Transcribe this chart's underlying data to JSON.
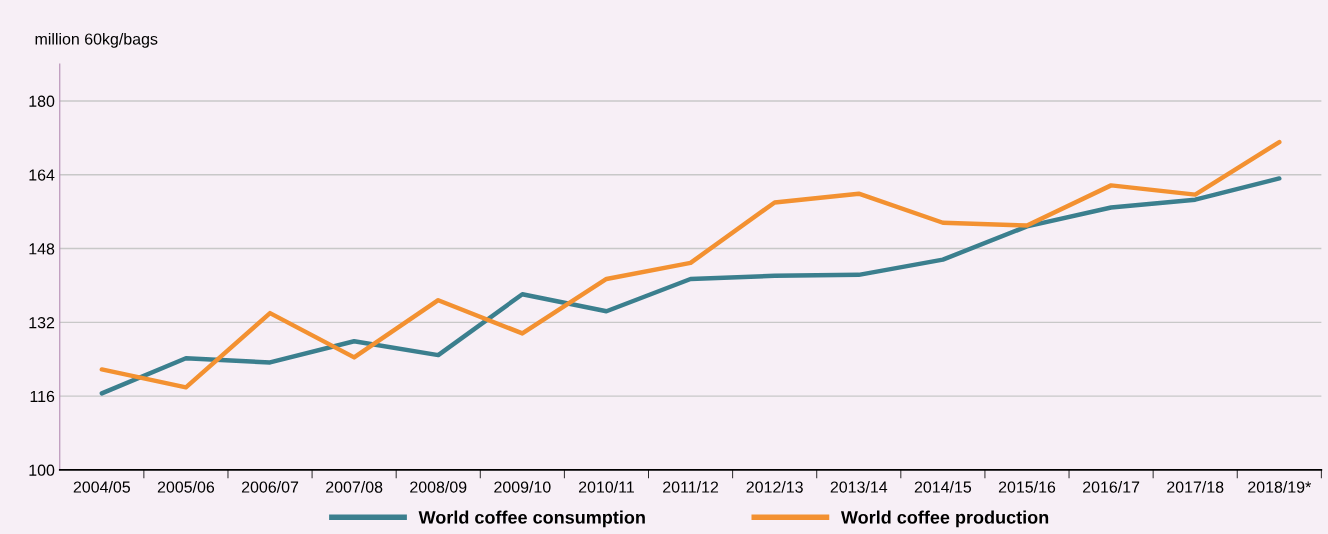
{
  "chart_data": {
    "type": "line",
    "ylabel": "million 60kg/bags",
    "categories": [
      "2004/05",
      "2005/06",
      "2006/07",
      "2007/08",
      "2008/09",
      "2009/10",
      "2010/11",
      "2011/12",
      "2012/13",
      "2013/14",
      "2014/15",
      "2015/16",
      "2016/17",
      "2017/18",
      "2018/19*"
    ],
    "series": [
      {
        "name": "World coffee consumption",
        "color": "#3b7f8e",
        "values": [
          116.6,
          124.2,
          123.3,
          127.9,
          124.9,
          138.1,
          134.4,
          141.4,
          142.1,
          142.3,
          145.6,
          152.8,
          156.9,
          158.6,
          163.2
        ]
      },
      {
        "name": "World coffee production",
        "color": "#f39131",
        "values": [
          121.8,
          117.9,
          134.0,
          124.4,
          136.8,
          129.6,
          141.4,
          144.9,
          158.0,
          159.9,
          153.6,
          153.0,
          161.7,
          159.7,
          171.1
        ]
      }
    ],
    "ylim": [
      100,
      188
    ],
    "yticks": [
      100,
      116,
      132,
      148,
      164,
      180
    ],
    "grid": "y",
    "legend": "bottom",
    "marker": "none",
    "line_style": "solid"
  }
}
